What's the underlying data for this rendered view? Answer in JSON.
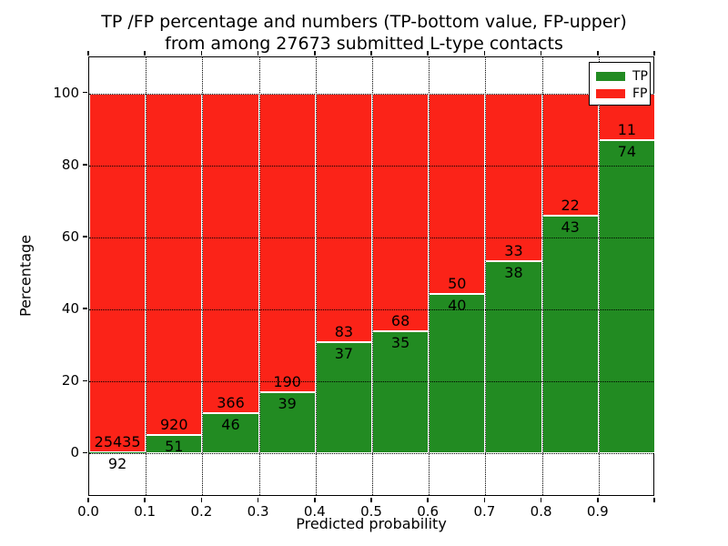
{
  "title": {
    "line1": "TP /FP percentage and numbers (TP-bottom value, FP-upper)",
    "line2": "from among 27673 submitted L-type contacts"
  },
  "axes": {
    "xlabel": "Predicted probability",
    "ylabel": "Percentage"
  },
  "legend": {
    "items": [
      {
        "label": "TP",
        "color": "#228b22"
      },
      {
        "label": "FP",
        "color": "#fb2318"
      }
    ]
  },
  "chart_data": {
    "type": "bar",
    "stacked": true,
    "normalized_to_percent": true,
    "title": "TP /FP percentage and numbers (TP-bottom value, FP-upper) from among 27673 submitted L-type contacts",
    "xlabel": "Predicted probability",
    "ylabel": "Percentage",
    "total_submitted_contacts": 27673,
    "bin_width": 0.1,
    "categories": [
      "0.0-0.1",
      "0.1-0.2",
      "0.2-0.3",
      "0.3-0.4",
      "0.4-0.5",
      "0.5-0.6",
      "0.6-0.7",
      "0.7-0.8",
      "0.8-0.9",
      "0.9-1.0"
    ],
    "series": [
      {
        "name": "TP",
        "color": "#228b22",
        "counts": [
          92,
          51,
          46,
          39,
          37,
          35,
          40,
          38,
          43,
          74
        ]
      },
      {
        "name": "FP",
        "color": "#fb2318",
        "counts": [
          25435,
          920,
          366,
          190,
          83,
          68,
          50,
          33,
          22,
          11
        ]
      }
    ],
    "tp_percent_of_bin": [
      0.36,
      5.25,
      11.17,
      17.03,
      30.83,
      33.98,
      44.44,
      53.52,
      66.15,
      87.06
    ],
    "x_tick_labels": [
      "0.0",
      "0.1",
      "0.2",
      "0.3",
      "0.4",
      "0.5",
      "0.6",
      "0.7",
      "0.8",
      "0.9"
    ],
    "y_tick_values": [
      0,
      20,
      40,
      60,
      80,
      100
    ],
    "xlim": [
      0.0,
      1.0
    ],
    "ylim": [
      -12,
      110
    ],
    "grid": "dotted black, horizontal at y ticks and vertical at x ticks",
    "legend_position": "upper right",
    "bar_edge_color": "#ffffff"
  }
}
